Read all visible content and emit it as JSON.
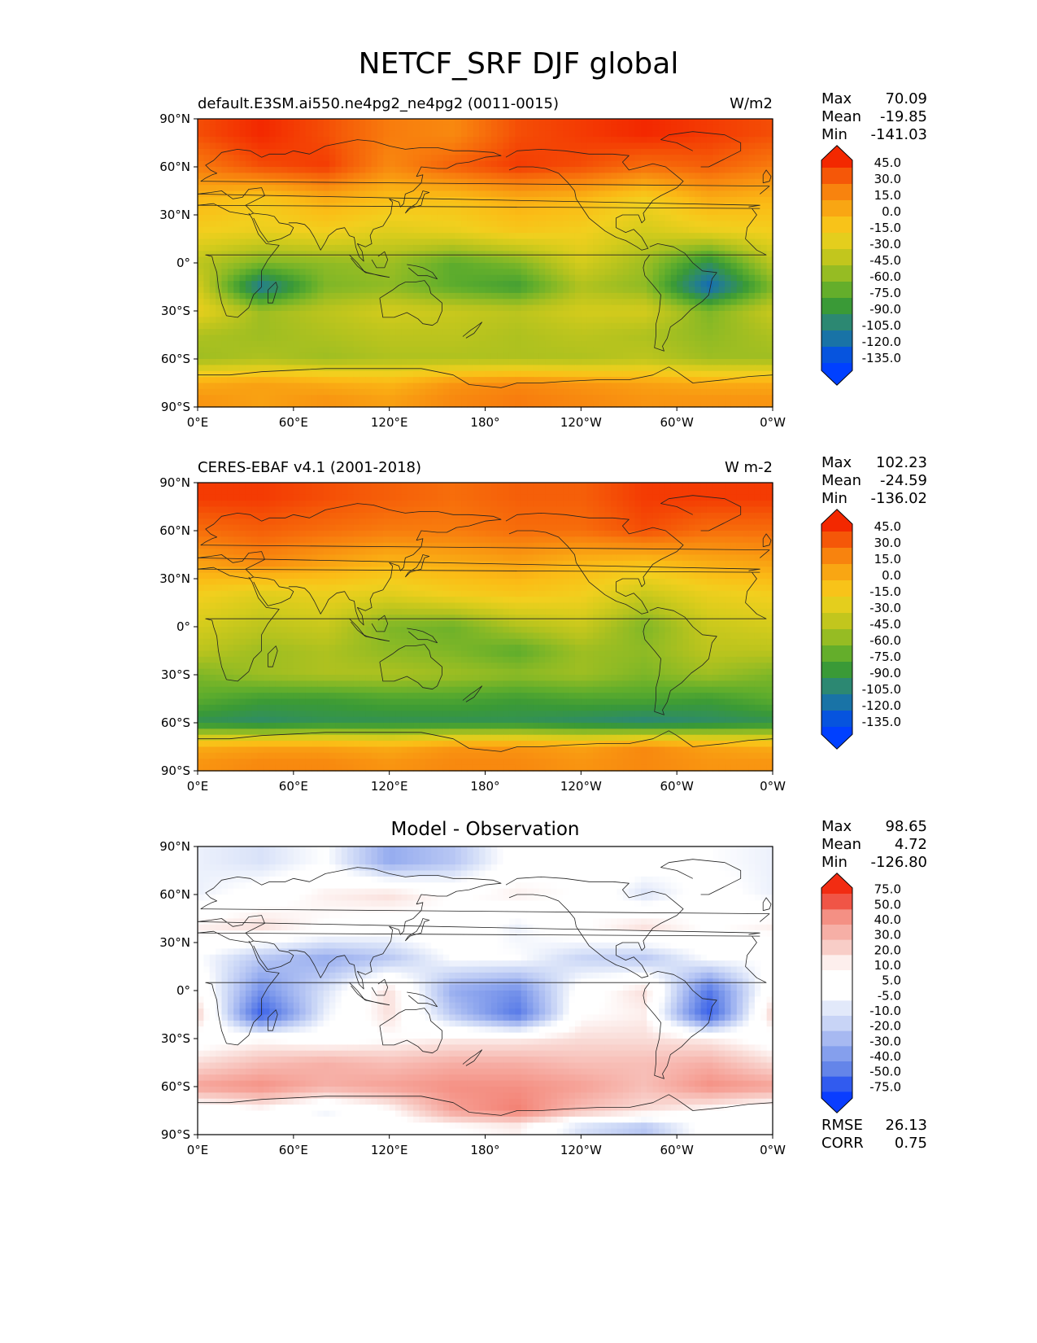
{
  "figure_title": "NETCF_SRF DJF global",
  "colors": {
    "abs_cmap": [
      "#0040ff",
      "#0b63c4",
      "#1f7a9a",
      "#2e8b6a",
      "#3a9a36",
      "#5fad2c",
      "#8cba25",
      "#b6c31e",
      "#d6cc1c",
      "#f2cf1e",
      "#fbbc16",
      "#f9a012",
      "#f8800e",
      "#f55a08",
      "#f32800"
    ],
    "diff_cmap": [
      "#0a3dff",
      "#2c57f0",
      "#4a6fe9",
      "#6b8ae9",
      "#8ea6ee",
      "#b3c3f3",
      "#d6e0f8",
      "#ffffff",
      "#ffffff",
      "#f9d8d3",
      "#f7b8b0",
      "#f5978b",
      "#f27466",
      "#ef4f40",
      "#f22c12"
    ]
  },
  "panels": [
    {
      "title_left": "default.E3SM.ai550.ne4pg2_ne4pg2 (0011-0015)",
      "title_right": "W/m2",
      "title_center": "",
      "stats": [
        {
          "label": "Max",
          "value": "70.09"
        },
        {
          "label": "Mean",
          "value": "-19.85"
        },
        {
          "label": "Min",
          "value": "-141.03"
        }
      ],
      "colorbar_ticks": [
        "45.0",
        "30.0",
        "15.0",
        "0.0",
        "-15.0",
        "-30.0",
        "-45.0",
        "-60.0",
        "-75.0",
        "-90.0",
        "-105.0",
        "-120.0",
        "-135.0"
      ],
      "footer": []
    },
    {
      "title_left": "CERES-EBAF v4.1 (2001-2018)",
      "title_right": "W m-2",
      "title_center": "",
      "stats": [
        {
          "label": "Max",
          "value": "102.23"
        },
        {
          "label": "Mean",
          "value": "-24.59"
        },
        {
          "label": "Min",
          "value": "-136.02"
        }
      ],
      "colorbar_ticks": [
        "45.0",
        "30.0",
        "15.0",
        "0.0",
        "-15.0",
        "-30.0",
        "-45.0",
        "-60.0",
        "-75.0",
        "-90.0",
        "-105.0",
        "-120.0",
        "-135.0"
      ],
      "footer": []
    },
    {
      "title_left": "",
      "title_right": "",
      "title_center": "Model - Observation",
      "stats": [
        {
          "label": "Max",
          "value": "98.65"
        },
        {
          "label": "Mean",
          "value": "4.72"
        },
        {
          "label": "Min",
          "value": "-126.80"
        }
      ],
      "colorbar_ticks": [
        "75.0",
        "50.0",
        "40.0",
        "30.0",
        "20.0",
        "10.0",
        "5.0",
        "-5.0",
        "-10.0",
        "-20.0",
        "-30.0",
        "-40.0",
        "-50.0",
        "-75.0"
      ],
      "footer": [
        {
          "label": "RMSE",
          "value": "26.13"
        },
        {
          "label": "CORR",
          "value": "0.75"
        }
      ]
    }
  ],
  "chart_data": [
    {
      "type": "heatmap",
      "title": "default.E3SM.ai550.ne4pg2_ne4pg2 (0011-0015)",
      "units": "W/m2",
      "x_ticks": [
        "0°E",
        "60°E",
        "120°E",
        "180°",
        "120°W",
        "60°W",
        "0°W"
      ],
      "y_ticks": [
        "90°N",
        "60°N",
        "30°N",
        "0°",
        "30°S",
        "60°S",
        "90°S"
      ],
      "xlim": [
        0,
        360
      ],
      "ylim": [
        -90,
        90
      ],
      "lat": [
        80,
        60,
        40,
        20,
        0,
        -15,
        -30,
        -45,
        -60,
        -75,
        -85
      ],
      "lon": [
        0,
        40,
        80,
        120,
        160,
        200,
        240,
        280,
        320,
        360
      ],
      "values": [
        [
          40,
          50,
          40,
          25,
          20,
          40,
          45,
          50,
          45,
          40
        ],
        [
          25,
          40,
          45,
          20,
          35,
          45,
          40,
          30,
          35,
          25
        ],
        [
          0,
          -10,
          5,
          -5,
          -5,
          5,
          0,
          -15,
          5,
          0
        ],
        [
          -15,
          -20,
          -15,
          -25,
          -20,
          -10,
          -15,
          -30,
          -20,
          -15
        ],
        [
          -40,
          -60,
          -55,
          -50,
          -70,
          -60,
          -30,
          -50,
          -90,
          -40
        ],
        [
          -30,
          -110,
          -60,
          -55,
          -70,
          -80,
          -45,
          -55,
          -120,
          -60
        ],
        [
          -20,
          -50,
          -40,
          -30,
          -35,
          -40,
          -30,
          -30,
          -60,
          -35
        ],
        [
          -45,
          -50,
          -45,
          -40,
          -40,
          -45,
          -40,
          -45,
          -55,
          -45
        ],
        [
          -50,
          -45,
          -50,
          -45,
          -45,
          -45,
          -45,
          -40,
          -50,
          -50
        ],
        [
          5,
          10,
          5,
          0,
          15,
          20,
          15,
          10,
          5,
          5
        ],
        [
          15,
          10,
          15,
          10,
          20,
          25,
          20,
          15,
          15,
          15
        ]
      ]
    },
    {
      "type": "heatmap",
      "title": "CERES-EBAF v4.1 (2001-2018)",
      "units": "W m-2",
      "x_ticks": [
        "0°E",
        "60°E",
        "120°E",
        "180°",
        "120°W",
        "60°W",
        "0°W"
      ],
      "y_ticks": [
        "90°N",
        "60°N",
        "30°N",
        "0°",
        "30°S",
        "60°S",
        "90°S"
      ],
      "xlim": [
        0,
        360
      ],
      "ylim": [
        -90,
        90
      ],
      "lat": [
        80,
        60,
        40,
        20,
        0,
        -15,
        -30,
        -45,
        -60,
        -75,
        -85
      ],
      "lon": [
        0,
        40,
        80,
        120,
        160,
        200,
        240,
        280,
        320,
        360
      ],
      "values": [
        [
          45,
          45,
          40,
          35,
          30,
          35,
          35,
          45,
          45,
          45
        ],
        [
          30,
          35,
          30,
          25,
          25,
          30,
          30,
          40,
          30,
          30
        ],
        [
          10,
          20,
          10,
          0,
          5,
          10,
          0,
          -5,
          5,
          10
        ],
        [
          -15,
          -25,
          -20,
          -25,
          -15,
          -10,
          -15,
          -35,
          -20,
          -15
        ],
        [
          -30,
          -40,
          -35,
          -60,
          -65,
          -45,
          -35,
          -60,
          -35,
          -30
        ],
        [
          -40,
          -50,
          -45,
          -55,
          -60,
          -70,
          -50,
          -55,
          -40,
          -40
        ],
        [
          -60,
          -50,
          -45,
          -45,
          -50,
          -55,
          -50,
          -60,
          -50,
          -60
        ],
        [
          -70,
          -80,
          -80,
          -75,
          -75,
          -80,
          -75,
          -75,
          -80,
          -70
        ],
        [
          -90,
          -95,
          -90,
          -90,
          -90,
          -90,
          -95,
          -100,
          -95,
          -90
        ],
        [
          5,
          10,
          10,
          5,
          15,
          15,
          10,
          20,
          10,
          5
        ],
        [
          15,
          20,
          20,
          15,
          20,
          20,
          15,
          20,
          15,
          15
        ]
      ]
    },
    {
      "type": "heatmap",
      "title": "Model - Observation",
      "units": "",
      "x_ticks": [
        "0°E",
        "60°E",
        "120°E",
        "180°",
        "120°W",
        "60°W",
        "0°W"
      ],
      "y_ticks": [
        "90°N",
        "60°N",
        "30°N",
        "0°",
        "30°S",
        "60°S",
        "90°S"
      ],
      "xlim": [
        0,
        360
      ],
      "ylim": [
        -90,
        90
      ],
      "lat": [
        80,
        60,
        40,
        20,
        0,
        -15,
        -30,
        -45,
        -60,
        -75,
        -85
      ],
      "lon": [
        0,
        40,
        80,
        120,
        160,
        200,
        240,
        280,
        320,
        360
      ],
      "values": [
        [
          -5,
          -10,
          0,
          -30,
          -20,
          5,
          10,
          5,
          0,
          -5
        ],
        [
          -5,
          5,
          15,
          20,
          10,
          15,
          10,
          -10,
          5,
          -5
        ],
        [
          15,
          20,
          10,
          5,
          10,
          -5,
          10,
          20,
          10,
          15
        ],
        [
          0,
          -20,
          -30,
          -20,
          0,
          0,
          -15,
          -20,
          0,
          0
        ],
        [
          10,
          -40,
          -10,
          20,
          -30,
          -40,
          5,
          20,
          -50,
          10
        ],
        [
          25,
          -60,
          -5,
          20,
          -20,
          -50,
          10,
          15,
          -60,
          25
        ],
        [
          5,
          10,
          5,
          10,
          15,
          15,
          20,
          20,
          15,
          5
        ],
        [
          20,
          30,
          35,
          30,
          35,
          35,
          30,
          30,
          35,
          20
        ],
        [
          40,
          45,
          35,
          40,
          45,
          45,
          40,
          30,
          45,
          40
        ],
        [
          0,
          10,
          -5,
          10,
          40,
          50,
          30,
          20,
          10,
          0
        ],
        [
          5,
          5,
          5,
          5,
          10,
          15,
          -10,
          -20,
          5,
          5
        ]
      ]
    }
  ]
}
